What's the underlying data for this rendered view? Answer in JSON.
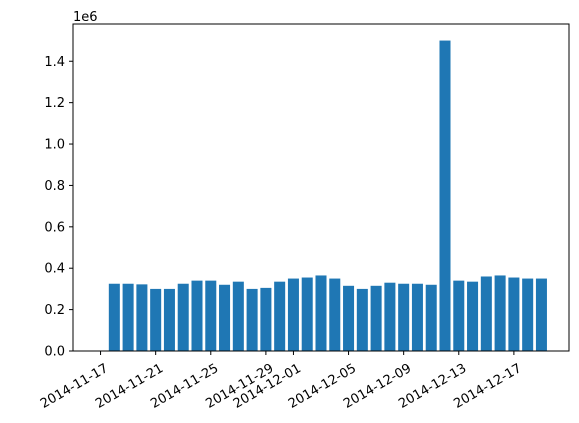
{
  "chart_data": {
    "type": "bar",
    "title": "",
    "xlabel": "",
    "ylabel": "",
    "y_scale_label": "1e6",
    "color": "#1f77b4",
    "grid": false,
    "legend": "none",
    "x": [
      "2014-11-18",
      "2014-11-19",
      "2014-11-20",
      "2014-11-21",
      "2014-11-22",
      "2014-11-23",
      "2014-11-24",
      "2014-11-25",
      "2014-11-26",
      "2014-11-27",
      "2014-11-28",
      "2014-11-29",
      "2014-11-30",
      "2014-12-01",
      "2014-12-02",
      "2014-12-03",
      "2014-12-04",
      "2014-12-05",
      "2014-12-06",
      "2014-12-07",
      "2014-12-08",
      "2014-12-09",
      "2014-12-10",
      "2014-12-11",
      "2014-12-12",
      "2014-12-13",
      "2014-12-14",
      "2014-12-15",
      "2014-12-16",
      "2014-12-17",
      "2014-12-18",
      "2014-12-19"
    ],
    "values": [
      0.325,
      0.325,
      0.322,
      0.3,
      0.3,
      0.325,
      0.34,
      0.34,
      0.32,
      0.335,
      0.3,
      0.305,
      0.335,
      0.35,
      0.355,
      0.365,
      0.35,
      0.315,
      0.3,
      0.315,
      0.33,
      0.325,
      0.325,
      0.32,
      1.5,
      0.34,
      0.335,
      0.36,
      0.365,
      0.355,
      0.35,
      0.35
    ],
    "x_range": [
      "2014-11-15",
      "2014-12-21"
    ],
    "ylim": [
      0,
      1.58
    ],
    "yticks": [
      0.0,
      0.2,
      0.4,
      0.6,
      0.8,
      1.0,
      1.2,
      1.4
    ],
    "ytick_labels": [
      "0.0",
      "0.2",
      "0.4",
      "0.6",
      "0.8",
      "1.0",
      "1.2",
      "1.4"
    ],
    "xticks": [
      "2014-11-17",
      "2014-11-21",
      "2014-11-25",
      "2014-11-29",
      "2014-12-01",
      "2014-12-05",
      "2014-12-09",
      "2014-12-13",
      "2014-12-17"
    ],
    "xtick_labels": [
      "2014-11-17",
      "2014-11-21",
      "2014-11-25",
      "2014-11-29",
      "2014-12-01",
      "2014-12-05",
      "2014-12-09",
      "2014-12-13",
      "2014-12-17"
    ]
  }
}
